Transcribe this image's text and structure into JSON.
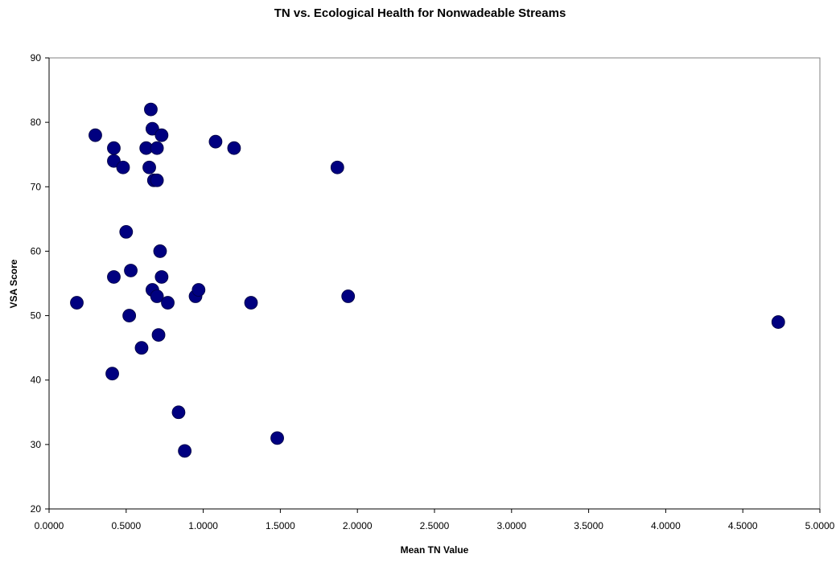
{
  "chart_data": {
    "type": "scatter",
    "title": "TN vs. Ecological Health for Nonwadeable Streams",
    "xlabel": "Mean TN Value",
    "ylabel": "VSA Score",
    "xlim": [
      0,
      5
    ],
    "ylim": [
      20,
      90
    ],
    "x_ticks": [
      "0.0000",
      "0.5000",
      "1.0000",
      "1.5000",
      "2.0000",
      "2.5000",
      "3.0000",
      "3.5000",
      "4.0000",
      "4.5000",
      "5.0000"
    ],
    "y_ticks": [
      "20",
      "30",
      "40",
      "50",
      "60",
      "70",
      "80",
      "90"
    ],
    "grid": false,
    "legend": "none",
    "marker_color": "#000080",
    "points": [
      {
        "x": 0.18,
        "y": 52
      },
      {
        "x": 0.3,
        "y": 78
      },
      {
        "x": 0.41,
        "y": 41
      },
      {
        "x": 0.42,
        "y": 56
      },
      {
        "x": 0.42,
        "y": 76
      },
      {
        "x": 0.42,
        "y": 74
      },
      {
        "x": 0.48,
        "y": 73
      },
      {
        "x": 0.5,
        "y": 63
      },
      {
        "x": 0.52,
        "y": 50
      },
      {
        "x": 0.53,
        "y": 57
      },
      {
        "x": 0.6,
        "y": 45
      },
      {
        "x": 0.63,
        "y": 76
      },
      {
        "x": 0.65,
        "y": 73
      },
      {
        "x": 0.66,
        "y": 82
      },
      {
        "x": 0.67,
        "y": 79
      },
      {
        "x": 0.67,
        "y": 54
      },
      {
        "x": 0.68,
        "y": 71
      },
      {
        "x": 0.7,
        "y": 71
      },
      {
        "x": 0.7,
        "y": 76
      },
      {
        "x": 0.7,
        "y": 53
      },
      {
        "x": 0.71,
        "y": 47
      },
      {
        "x": 0.72,
        "y": 60
      },
      {
        "x": 0.73,
        "y": 78
      },
      {
        "x": 0.73,
        "y": 56
      },
      {
        "x": 0.77,
        "y": 52
      },
      {
        "x": 0.84,
        "y": 35
      },
      {
        "x": 0.88,
        "y": 29
      },
      {
        "x": 0.95,
        "y": 53
      },
      {
        "x": 0.97,
        "y": 54
      },
      {
        "x": 1.08,
        "y": 77
      },
      {
        "x": 1.2,
        "y": 76
      },
      {
        "x": 1.31,
        "y": 52
      },
      {
        "x": 1.48,
        "y": 31
      },
      {
        "x": 1.87,
        "y": 73
      },
      {
        "x": 1.94,
        "y": 53
      },
      {
        "x": 4.73,
        "y": 49
      }
    ]
  }
}
